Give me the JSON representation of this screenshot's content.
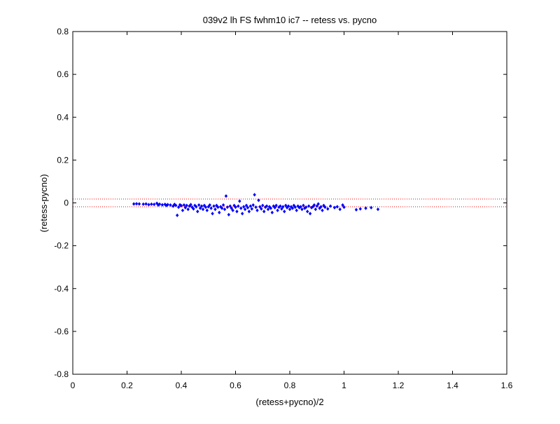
{
  "chart_data": {
    "type": "scatter",
    "title": "039v2 lh FS fwhm10 ic7 -- retess vs. pycno",
    "xlabel": "(retess+pycno)/2",
    "ylabel": "(retess-pycno)",
    "xlim": [
      0,
      1.6
    ],
    "ylim": [
      -0.8,
      0.8
    ],
    "x_ticks": [
      0,
      0.2,
      0.4,
      0.6,
      0.8,
      1,
      1.2,
      1.4,
      1.6
    ],
    "x_tick_labels": [
      "0",
      "0.2",
      "0.4",
      "0.6",
      "0.8",
      "1",
      "1.2",
      "1.4",
      "1.6"
    ],
    "y_ticks": [
      0.8,
      0.6,
      0.4,
      0.2,
      0,
      -0.2,
      -0.4,
      -0.6,
      -0.8
    ],
    "y_tick_labels": [
      "0.8",
      "0.6",
      "0.4",
      "0.2",
      "0",
      "-0.2",
      "-0.4",
      "-0.6",
      "-0.8"
    ],
    "grid": false,
    "marker_color": "#0000ff",
    "reference_line_color": "#ff0000",
    "reference_lines_y": [
      0.018,
      -0.018
    ],
    "points": [
      [
        0.225,
        -0.005
      ],
      [
        0.235,
        -0.004
      ],
      [
        0.245,
        -0.005
      ],
      [
        0.26,
        -0.006
      ],
      [
        0.27,
        -0.005
      ],
      [
        0.28,
        -0.008
      ],
      [
        0.29,
        -0.006
      ],
      [
        0.3,
        -0.007
      ],
      [
        0.31,
        -0.002
      ],
      [
        0.315,
        -0.01
      ],
      [
        0.32,
        -0.006
      ],
      [
        0.33,
        -0.009
      ],
      [
        0.34,
        -0.007
      ],
      [
        0.345,
        -0.012
      ],
      [
        0.35,
        -0.008
      ],
      [
        0.36,
        -0.01
      ],
      [
        0.37,
        -0.015
      ],
      [
        0.375,
        -0.007
      ],
      [
        0.38,
        -0.012
      ],
      [
        0.385,
        -0.058
      ],
      [
        0.39,
        -0.02
      ],
      [
        0.395,
        -0.009
      ],
      [
        0.4,
        -0.013
      ],
      [
        0.405,
        -0.035
      ],
      [
        0.41,
        -0.01
      ],
      [
        0.415,
        -0.022
      ],
      [
        0.42,
        -0.012
      ],
      [
        0.425,
        -0.03
      ],
      [
        0.43,
        -0.015
      ],
      [
        0.435,
        -0.008
      ],
      [
        0.44,
        -0.02
      ],
      [
        0.445,
        -0.028
      ],
      [
        0.45,
        -0.012
      ],
      [
        0.455,
        -0.018
      ],
      [
        0.46,
        -0.04
      ],
      [
        0.465,
        -0.01
      ],
      [
        0.47,
        -0.025
      ],
      [
        0.475,
        -0.015
      ],
      [
        0.48,
        -0.03
      ],
      [
        0.485,
        -0.012
      ],
      [
        0.49,
        -0.02
      ],
      [
        0.495,
        -0.035
      ],
      [
        0.5,
        -0.018
      ],
      [
        0.505,
        -0.01
      ],
      [
        0.51,
        -0.025
      ],
      [
        0.515,
        -0.05
      ],
      [
        0.52,
        -0.015
      ],
      [
        0.525,
        -0.03
      ],
      [
        0.53,
        -0.012
      ],
      [
        0.535,
        -0.02
      ],
      [
        0.54,
        -0.045
      ],
      [
        0.545,
        -0.018
      ],
      [
        0.55,
        -0.025
      ],
      [
        0.555,
        -0.01
      ],
      [
        0.56,
        -0.03
      ],
      [
        0.565,
        0.032
      ],
      [
        0.57,
        -0.02
      ],
      [
        0.575,
        -0.055
      ],
      [
        0.58,
        -0.015
      ],
      [
        0.585,
        -0.025
      ],
      [
        0.59,
        -0.035
      ],
      [
        0.595,
        -0.012
      ],
      [
        0.6,
        -0.02
      ],
      [
        0.605,
        -0.04
      ],
      [
        0.61,
        -0.015
      ],
      [
        0.615,
        0.008
      ],
      [
        0.62,
        -0.025
      ],
      [
        0.625,
        -0.05
      ],
      [
        0.63,
        -0.018
      ],
      [
        0.635,
        -0.03
      ],
      [
        0.64,
        -0.012
      ],
      [
        0.645,
        -0.022
      ],
      [
        0.65,
        -0.04
      ],
      [
        0.655,
        -0.015
      ],
      [
        0.66,
        -0.028
      ],
      [
        0.665,
        -0.01
      ],
      [
        0.67,
        0.038
      ],
      [
        0.675,
        -0.02
      ],
      [
        0.68,
        -0.035
      ],
      [
        0.685,
        0.012
      ],
      [
        0.69,
        -0.018
      ],
      [
        0.695,
        -0.028
      ],
      [
        0.7,
        -0.012
      ],
      [
        0.705,
        -0.04
      ],
      [
        0.71,
        -0.02
      ],
      [
        0.715,
        -0.015
      ],
      [
        0.72,
        -0.03
      ],
      [
        0.725,
        -0.018
      ],
      [
        0.73,
        -0.025
      ],
      [
        0.735,
        -0.045
      ],
      [
        0.74,
        -0.015
      ],
      [
        0.745,
        -0.022
      ],
      [
        0.75,
        -0.012
      ],
      [
        0.755,
        -0.035
      ],
      [
        0.76,
        -0.02
      ],
      [
        0.765,
        -0.015
      ],
      [
        0.77,
        -0.028
      ],
      [
        0.775,
        -0.018
      ],
      [
        0.78,
        -0.04
      ],
      [
        0.785,
        -0.012
      ],
      [
        0.79,
        -0.022
      ],
      [
        0.795,
        -0.015
      ],
      [
        0.8,
        -0.03
      ],
      [
        0.805,
        -0.018
      ],
      [
        0.81,
        -0.025
      ],
      [
        0.815,
        -0.012
      ],
      [
        0.82,
        -0.02
      ],
      [
        0.825,
        -0.035
      ],
      [
        0.83,
        -0.015
      ],
      [
        0.835,
        -0.022
      ],
      [
        0.84,
        -0.018
      ],
      [
        0.845,
        -0.03
      ],
      [
        0.85,
        -0.012
      ],
      [
        0.855,
        -0.025
      ],
      [
        0.86,
        -0.02
      ],
      [
        0.865,
        -0.04
      ],
      [
        0.87,
        -0.015
      ],
      [
        0.875,
        -0.05
      ],
      [
        0.88,
        -0.022
      ],
      [
        0.885,
        -0.018
      ],
      [
        0.89,
        -0.01
      ],
      [
        0.895,
        -0.03
      ],
      [
        0.9,
        -0.015
      ],
      [
        0.905,
        -0.005
      ],
      [
        0.91,
        -0.025
      ],
      [
        0.915,
        -0.018
      ],
      [
        0.92,
        -0.035
      ],
      [
        0.925,
        -0.012
      ],
      [
        0.93,
        -0.02
      ],
      [
        0.94,
        -0.028
      ],
      [
        0.95,
        -0.015
      ],
      [
        0.965,
        -0.022
      ],
      [
        0.975,
        -0.018
      ],
      [
        0.985,
        -0.03
      ],
      [
        0.995,
        -0.01
      ],
      [
        1.0,
        -0.02
      ],
      [
        1.045,
        -0.032
      ],
      [
        1.06,
        -0.028
      ],
      [
        1.08,
        -0.025
      ],
      [
        1.1,
        -0.022
      ],
      [
        1.125,
        -0.03
      ]
    ]
  }
}
